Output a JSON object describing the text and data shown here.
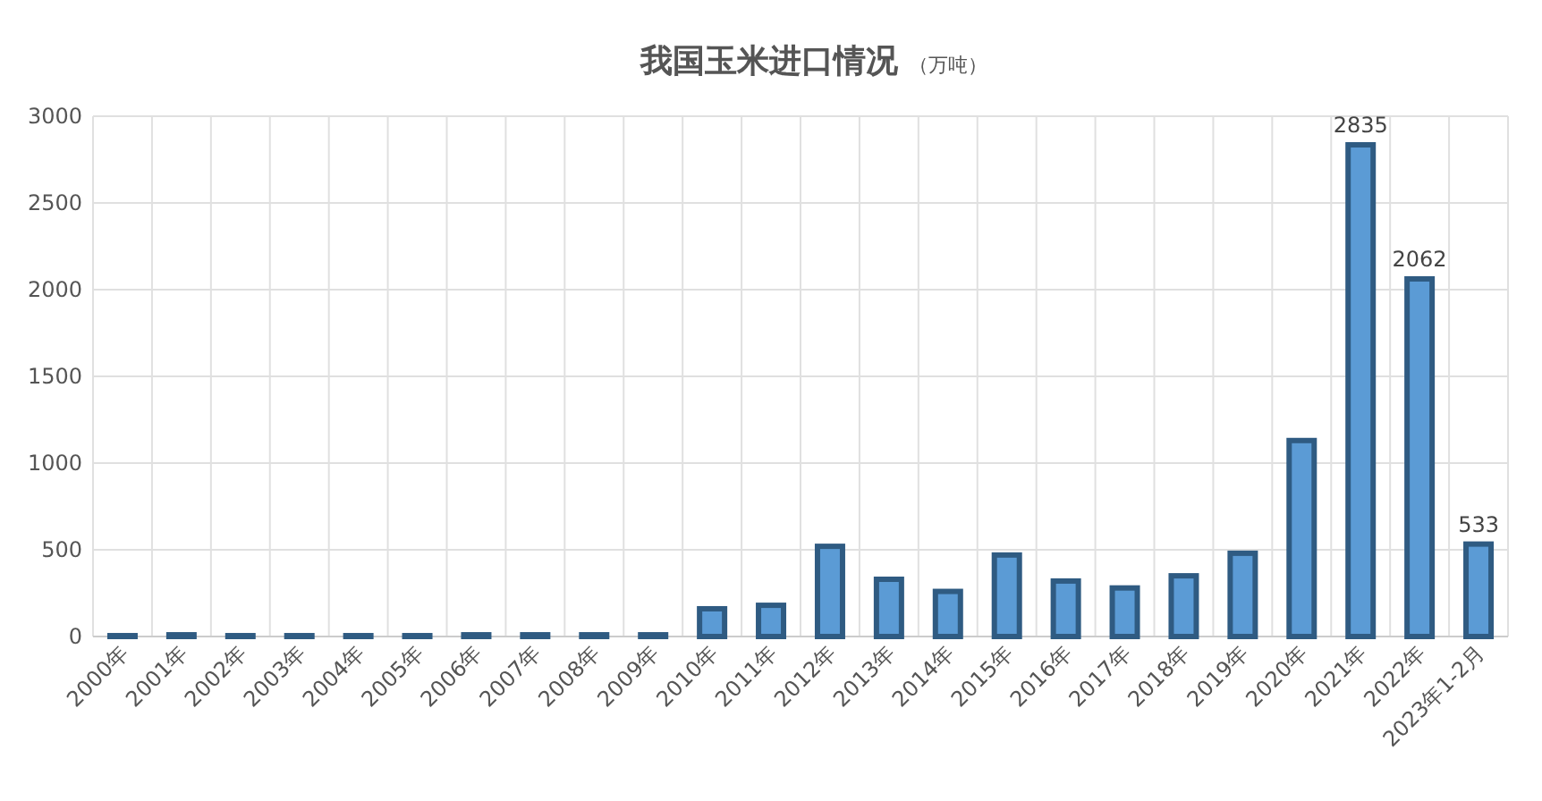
{
  "chart_data": {
    "type": "bar",
    "title": "我国玉米进口情况",
    "subtitle": "（万吨）",
    "categories": [
      "2000年",
      "2001年",
      "2002年",
      "2003年",
      "2004年",
      "2005年",
      "2006年",
      "2007年",
      "2008年",
      "2009年",
      "2010年",
      "2011年",
      "2012年",
      "2013年",
      "2014年",
      "2015年",
      "2016年",
      "2017年",
      "2018年",
      "2019年",
      "2020年",
      "2021年",
      "2022年",
      "2023年1-2月"
    ],
    "values": [
      5,
      10,
      5,
      5,
      5,
      5,
      10,
      10,
      10,
      10,
      160,
      180,
      520,
      330,
      260,
      470,
      320,
      280,
      350,
      480,
      1130,
      2835,
      2062,
      533
    ],
    "value_labels": [
      null,
      null,
      null,
      null,
      null,
      null,
      null,
      null,
      null,
      null,
      null,
      null,
      null,
      null,
      null,
      null,
      null,
      null,
      null,
      null,
      null,
      "2835",
      "2062",
      "533"
    ],
    "color": "#5b9bd5",
    "ylim": [
      0,
      3000
    ],
    "yticks": [
      0,
      500,
      1000,
      1500,
      2000,
      2500,
      3000
    ],
    "grid": true
  }
}
